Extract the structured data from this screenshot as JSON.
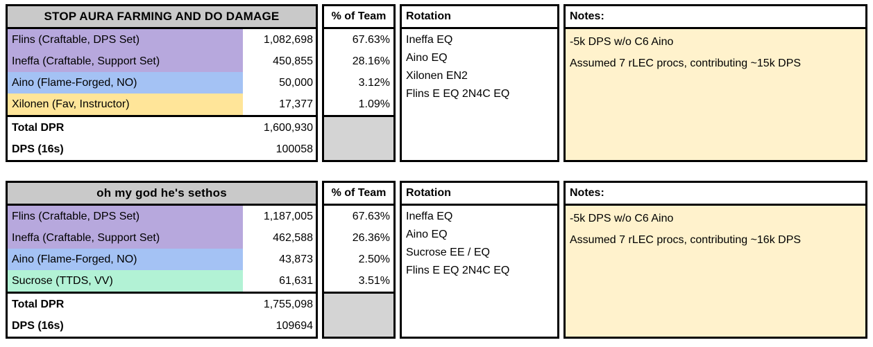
{
  "colors": {
    "title_bg": "#c9c9c9",
    "blank_bg": "#d4d4d4",
    "purple": "#b7a8dd",
    "blue": "#a4c2f4",
    "yellow": "#ffe599",
    "mint": "#b2f2d5",
    "notes_bg": "#fff2cc",
    "border": "#000000"
  },
  "tables": [
    {
      "title": "STOP AURA FARMING AND DO DAMAGE",
      "percent_header": "% of Team",
      "rotation_header": "Rotation",
      "notes_header": "Notes:",
      "rows": [
        {
          "name": "Flins (Craftable, DPS Set)",
          "value": "1,082,698",
          "percent": "67.63%",
          "color": "#b7a8dd"
        },
        {
          "name": "Ineffa (Craftable, Support Set)",
          "value": "450,855",
          "percent": "28.16%",
          "color": "#b7a8dd"
        },
        {
          "name": "Aino (Flame-Forged, NO)",
          "value": "50,000",
          "percent": "3.12%",
          "color": "#a4c2f4"
        },
        {
          "name": "Xilonen (Fav, Instructor)",
          "value": "17,377",
          "percent": "1.09%",
          "color": "#ffe599"
        }
      ],
      "totals": [
        {
          "label": "Total DPR",
          "value": "1,600,930"
        },
        {
          "label": "DPS (16s)",
          "value": "100058"
        }
      ],
      "rotation": [
        "Ineffa EQ",
        "Aino EQ",
        "Xilonen EN2",
        "Flins E EQ 2N4C EQ"
      ],
      "notes": [
        "-5k DPS w/o C6 Aino",
        "Assumed 7 rLEC procs, contributing ~15k DPS"
      ]
    },
    {
      "title": "oh my god he's sethos",
      "percent_header": "% of Team",
      "rotation_header": "Rotation",
      "notes_header": "Notes:",
      "rows": [
        {
          "name": "Flins (Craftable, DPS Set)",
          "value": "1,187,005",
          "percent": "67.63%",
          "color": "#b7a8dd"
        },
        {
          "name": "Ineffa (Craftable, Support Set)",
          "value": "462,588",
          "percent": "26.36%",
          "color": "#b7a8dd"
        },
        {
          "name": "Aino (Flame-Forged, NO)",
          "value": "43,873",
          "percent": "2.50%",
          "color": "#a4c2f4"
        },
        {
          "name": "Sucrose (TTDS, VV)",
          "value": "61,631",
          "percent": "3.51%",
          "color": "#b2f2d5"
        }
      ],
      "totals": [
        {
          "label": "Total DPR",
          "value": "1,755,098"
        },
        {
          "label": "DPS (16s)",
          "value": "109694"
        }
      ],
      "rotation": [
        "Ineffa EQ",
        "Aino EQ",
        "Sucrose EE / EQ",
        "Flins E EQ 2N4C EQ"
      ],
      "notes": [
        "-5k DPS w/o C6 Aino",
        "Assumed 7 rLEC procs, contributing ~16k DPS"
      ]
    }
  ]
}
